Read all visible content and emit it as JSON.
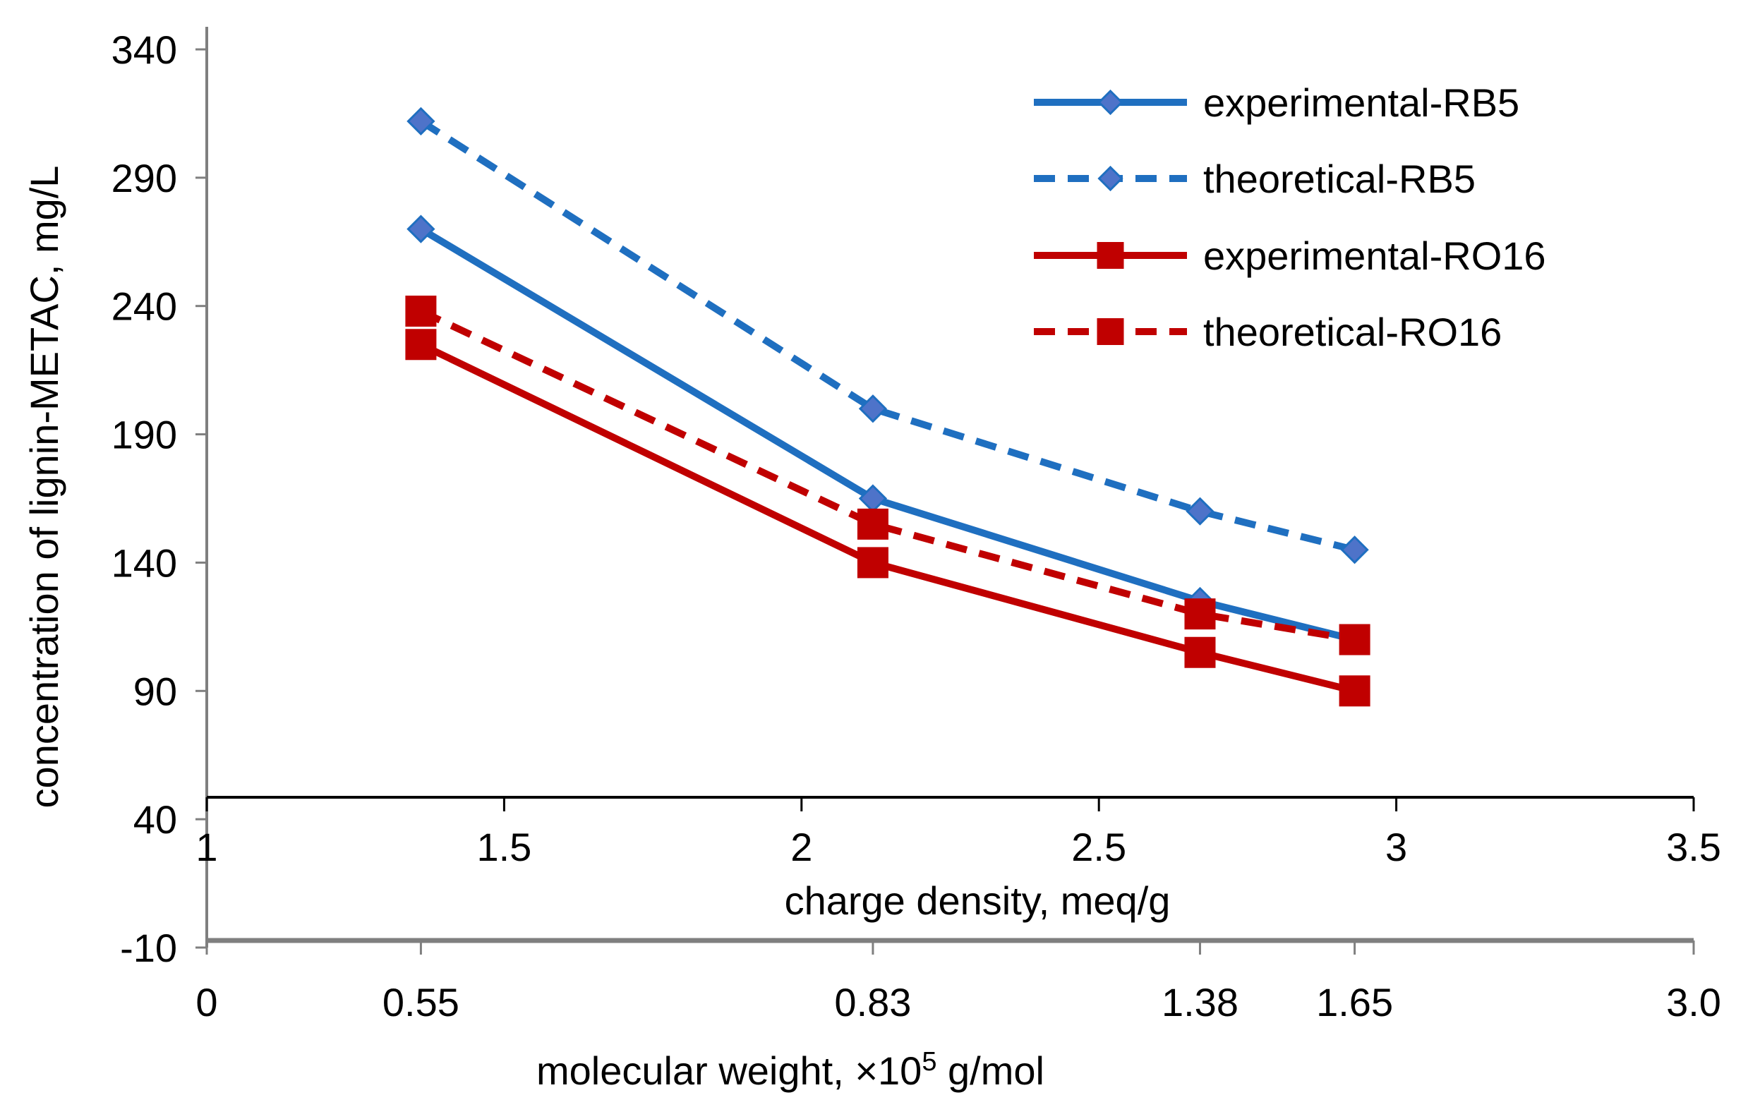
{
  "chart_data": {
    "type": "line",
    "title": "",
    "ylabel": "concentration of lignin-METAC, mg/L",
    "xlabel": "charge density, meq/g",
    "x2label_prefix": "molecular weight, ×10",
    "x2label_exponent": "5",
    "x2label_suffix": " g/mol",
    "ylim": [
      -10,
      340
    ],
    "yticks": [
      "340",
      "290",
      "240",
      "190",
      "140",
      "90",
      "40",
      "-10"
    ],
    "xlim": [
      1,
      3.5
    ],
    "xticks": [
      "1",
      "1.5",
      "2",
      "2.5",
      "3",
      "3.5"
    ],
    "x2ticks": [
      "0",
      "0.55",
      "0.83",
      "1.38",
      "1.65",
      "3.0"
    ],
    "x": [
      1.36,
      2.12,
      2.67,
      2.93
    ],
    "legend_position": "top-right",
    "colors": {
      "blue": "#1f6fc0",
      "red": "#c00000",
      "blue_marker": "#4e73c9",
      "axis": "#7f7f7f"
    },
    "series": [
      {
        "name": "experimental-RB5",
        "values": [
          270,
          165,
          125,
          110
        ],
        "line": "solid",
        "color": "#1f6fc0",
        "marker": "diamond"
      },
      {
        "name": "theoretical-RB5",
        "values": [
          312,
          200,
          160,
          145
        ],
        "line": "dashed",
        "color": "#1f6fc0",
        "marker": "diamond"
      },
      {
        "name": "experimental-RO16",
        "values": [
          225,
          140,
          105,
          90
        ],
        "line": "solid",
        "color": "#c00000",
        "marker": "square"
      },
      {
        "name": "theoretical-RO16",
        "values": [
          238,
          155,
          120,
          110
        ],
        "line": "dashed",
        "color": "#c00000",
        "marker": "square"
      }
    ]
  }
}
